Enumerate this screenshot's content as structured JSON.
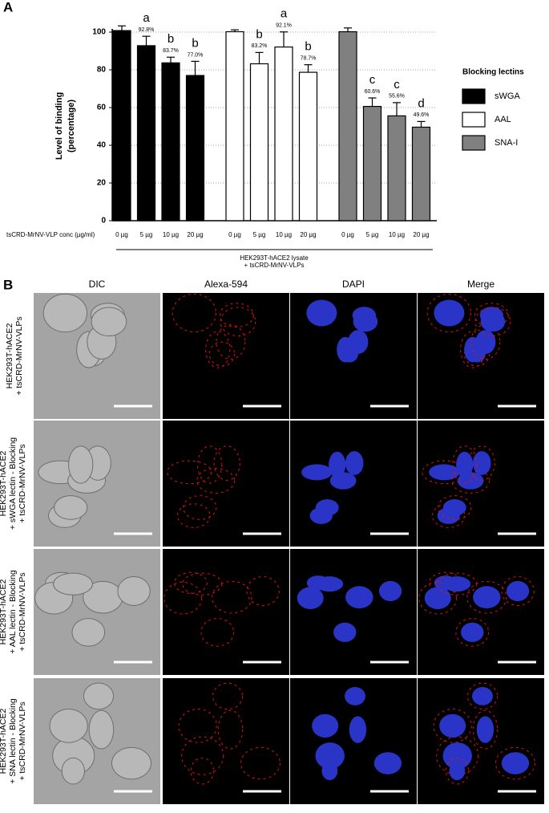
{
  "panel_labels": [
    "A",
    "B"
  ],
  "chart_data": {
    "type": "bar",
    "y_label": [
      "Level of binding",
      "(percentage)"
    ],
    "x_label": "tsCRD-MrNV-VLP conc (µg/ml)",
    "caption": [
      "HEK293T-hACE2 lysate",
      "+ tsCRD-MrNV-VLPs"
    ],
    "legend_title": "Blocking lectins",
    "categories": [
      "0 µg",
      "5 µg",
      "10 µg",
      "20 µg"
    ],
    "series": [
      {
        "name": "sWGA",
        "color": "#000000",
        "values": [
          100.8,
          92.8,
          83.7,
          77.0
        ],
        "errors": [
          2.5,
          5,
          3,
          7.5
        ],
        "value_labels": [
          null,
          "92.8%",
          "83.7%",
          "77.0%"
        ],
        "letters": [
          null,
          "a",
          "b",
          "b"
        ]
      },
      {
        "name": "AAL",
        "color": "#ffffff",
        "values": [
          100.2,
          83.2,
          92.1,
          78.7
        ],
        "errors": [
          1,
          6,
          8,
          4
        ],
        "value_labels": [
          null,
          "83.2%",
          "92.1%",
          "78.7%"
        ],
        "letters": [
          null,
          "b",
          "a",
          "b"
        ]
      },
      {
        "name": "SNA-I",
        "color": "#808080",
        "values": [
          100.2,
          60.6,
          55.6,
          49.6
        ],
        "errors": [
          2,
          4.5,
          7,
          3
        ],
        "value_labels": [
          null,
          "60.6%",
          "55.6%",
          "49.6%"
        ],
        "letters": [
          null,
          "c",
          "c",
          "d"
        ]
      }
    ],
    "ylim": [
      0,
      100
    ],
    "yticks": [
      0,
      20,
      40,
      60,
      80,
      100
    ],
    "grid": true
  },
  "panel_b": {
    "columns": [
      "DIC",
      "Alexa-594",
      "DAPI",
      "Merge"
    ],
    "rows": [
      [
        "HEK293T-hACE2",
        "+ tsCRD-MrNV-VLPs"
      ],
      [
        "HEK293T-hACE2",
        "+ sWGA lectin - Blocking",
        "+ tsCRD-MrNV-VLPs"
      ],
      [
        "HEK293T-hACE2",
        "+ AAL lectin - Blocking",
        "+ tsCRD-MrNV-VLPs"
      ],
      [
        "HEK293T-hACE2",
        "+ SNA lectin - Blocking",
        "+ tsCRD-MrNV-VLPs"
      ]
    ]
  }
}
